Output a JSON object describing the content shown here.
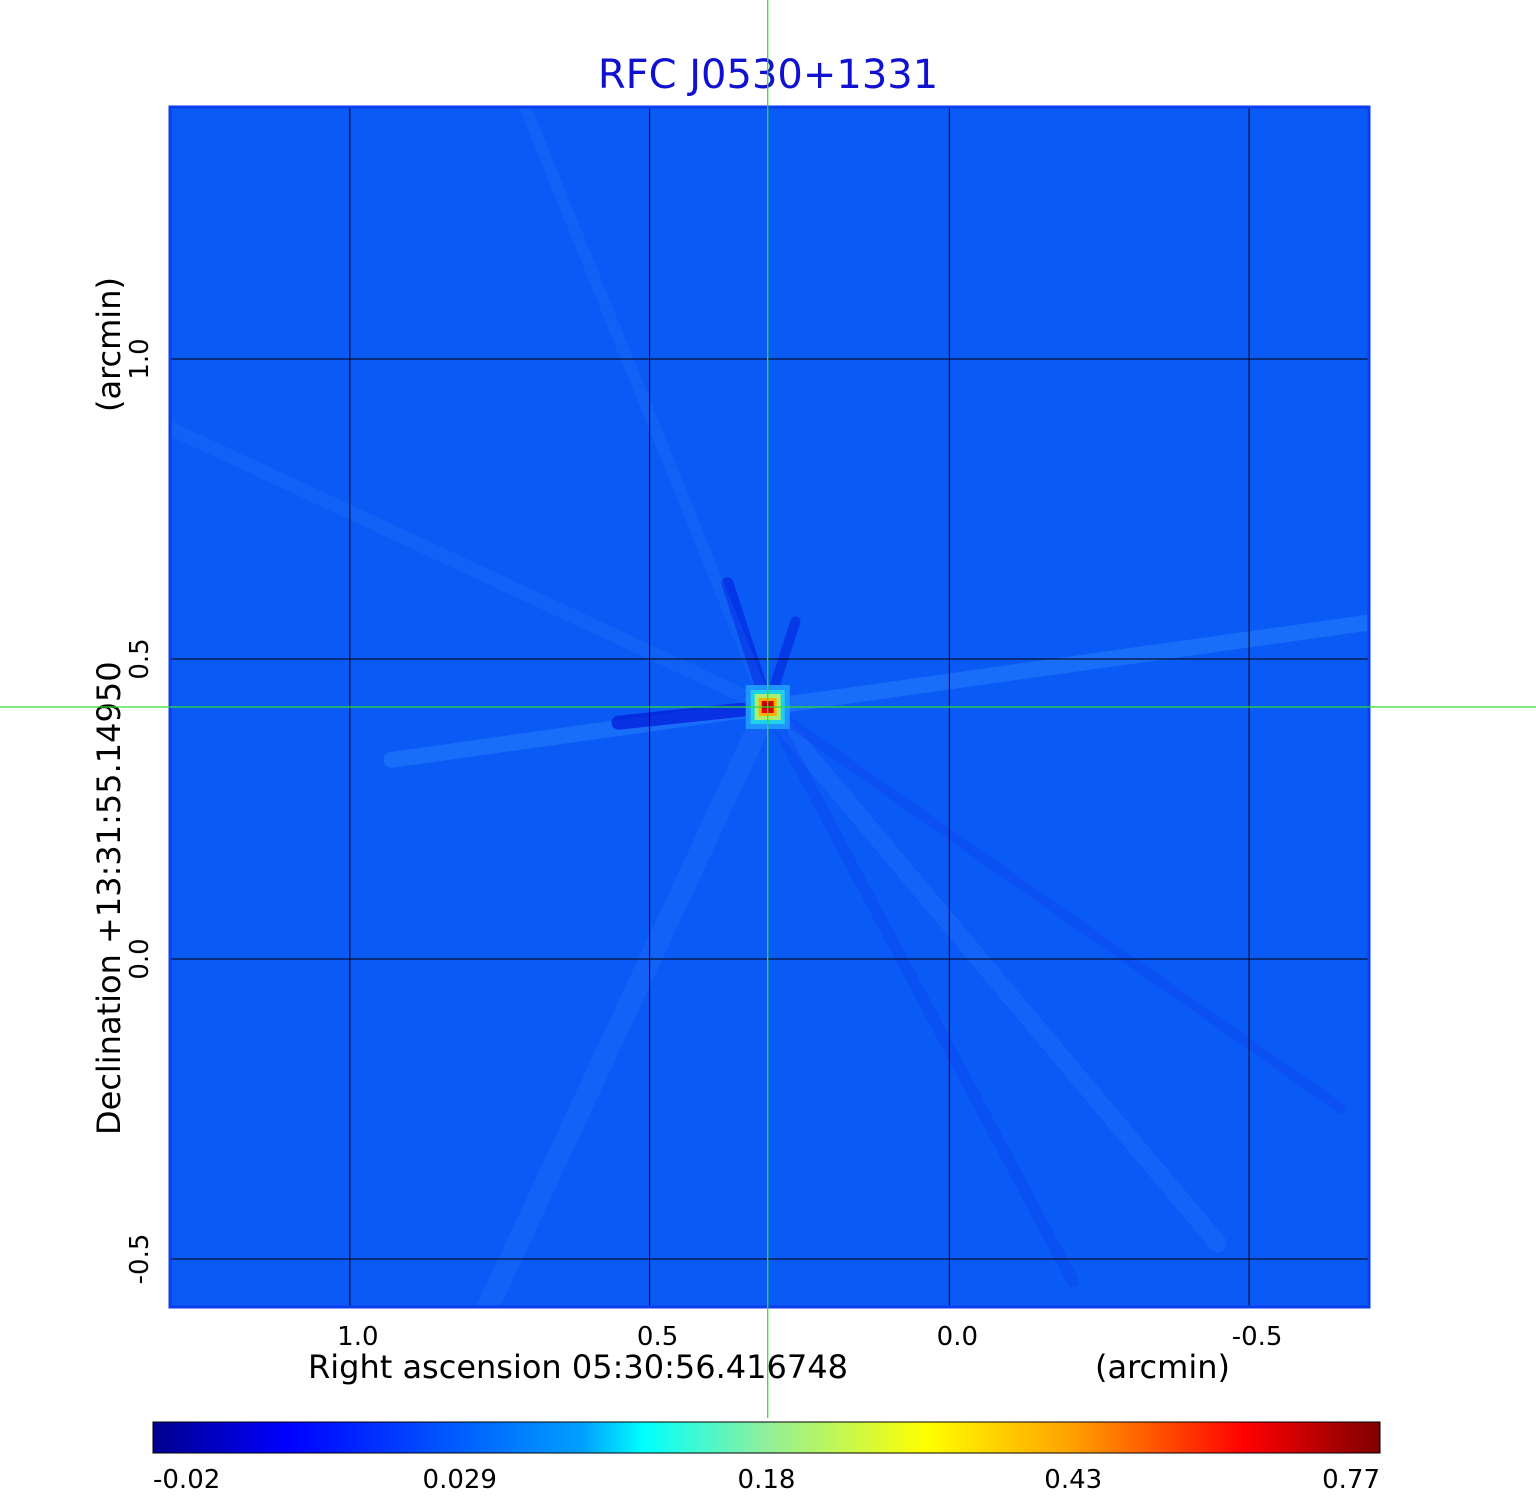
{
  "chart_data": {
    "type": "heatmap",
    "title": "RFC J0530+1331",
    "xlabel": "Right ascension  05:30:56.416748",
    "xunit": "(arcmin)",
    "ylabel": "Declination  +13:31:55.14950",
    "yunit": "(arcmin)",
    "xlim": [
      1.3,
      -0.7
    ],
    "ylim": [
      -0.58,
      1.42
    ],
    "x_ticks": [
      {
        "value": 1.0,
        "label": "1.0"
      },
      {
        "value": 0.5,
        "label": "0.5"
      },
      {
        "value": 0.0,
        "label": "0.0"
      },
      {
        "value": -0.5,
        "label": "-0.5"
      }
    ],
    "y_ticks": [
      {
        "value": -0.5,
        "label": "-0.5"
      },
      {
        "value": 0.0,
        "label": "0.0"
      },
      {
        "value": 0.5,
        "label": "0.5"
      },
      {
        "value": 1.0,
        "label": "1.0"
      }
    ],
    "grid": true,
    "peak": {
      "x": 0.303,
      "y": 0.42,
      "value": 0.77
    },
    "crosshair": {
      "x": 0.303,
      "y": 0.42,
      "color": "#33dd33"
    },
    "colorbar": {
      "placement": "bottom",
      "ticks": [
        "-0.02",
        "0.029",
        "0.18",
        "0.43",
        "0.77"
      ],
      "min": -0.02,
      "max": 0.77
    },
    "colors": {
      "background_field": "#0a5af5",
      "frame": "#0a3cf0",
      "title": "#1010d0",
      "grid": "#000000"
    }
  }
}
